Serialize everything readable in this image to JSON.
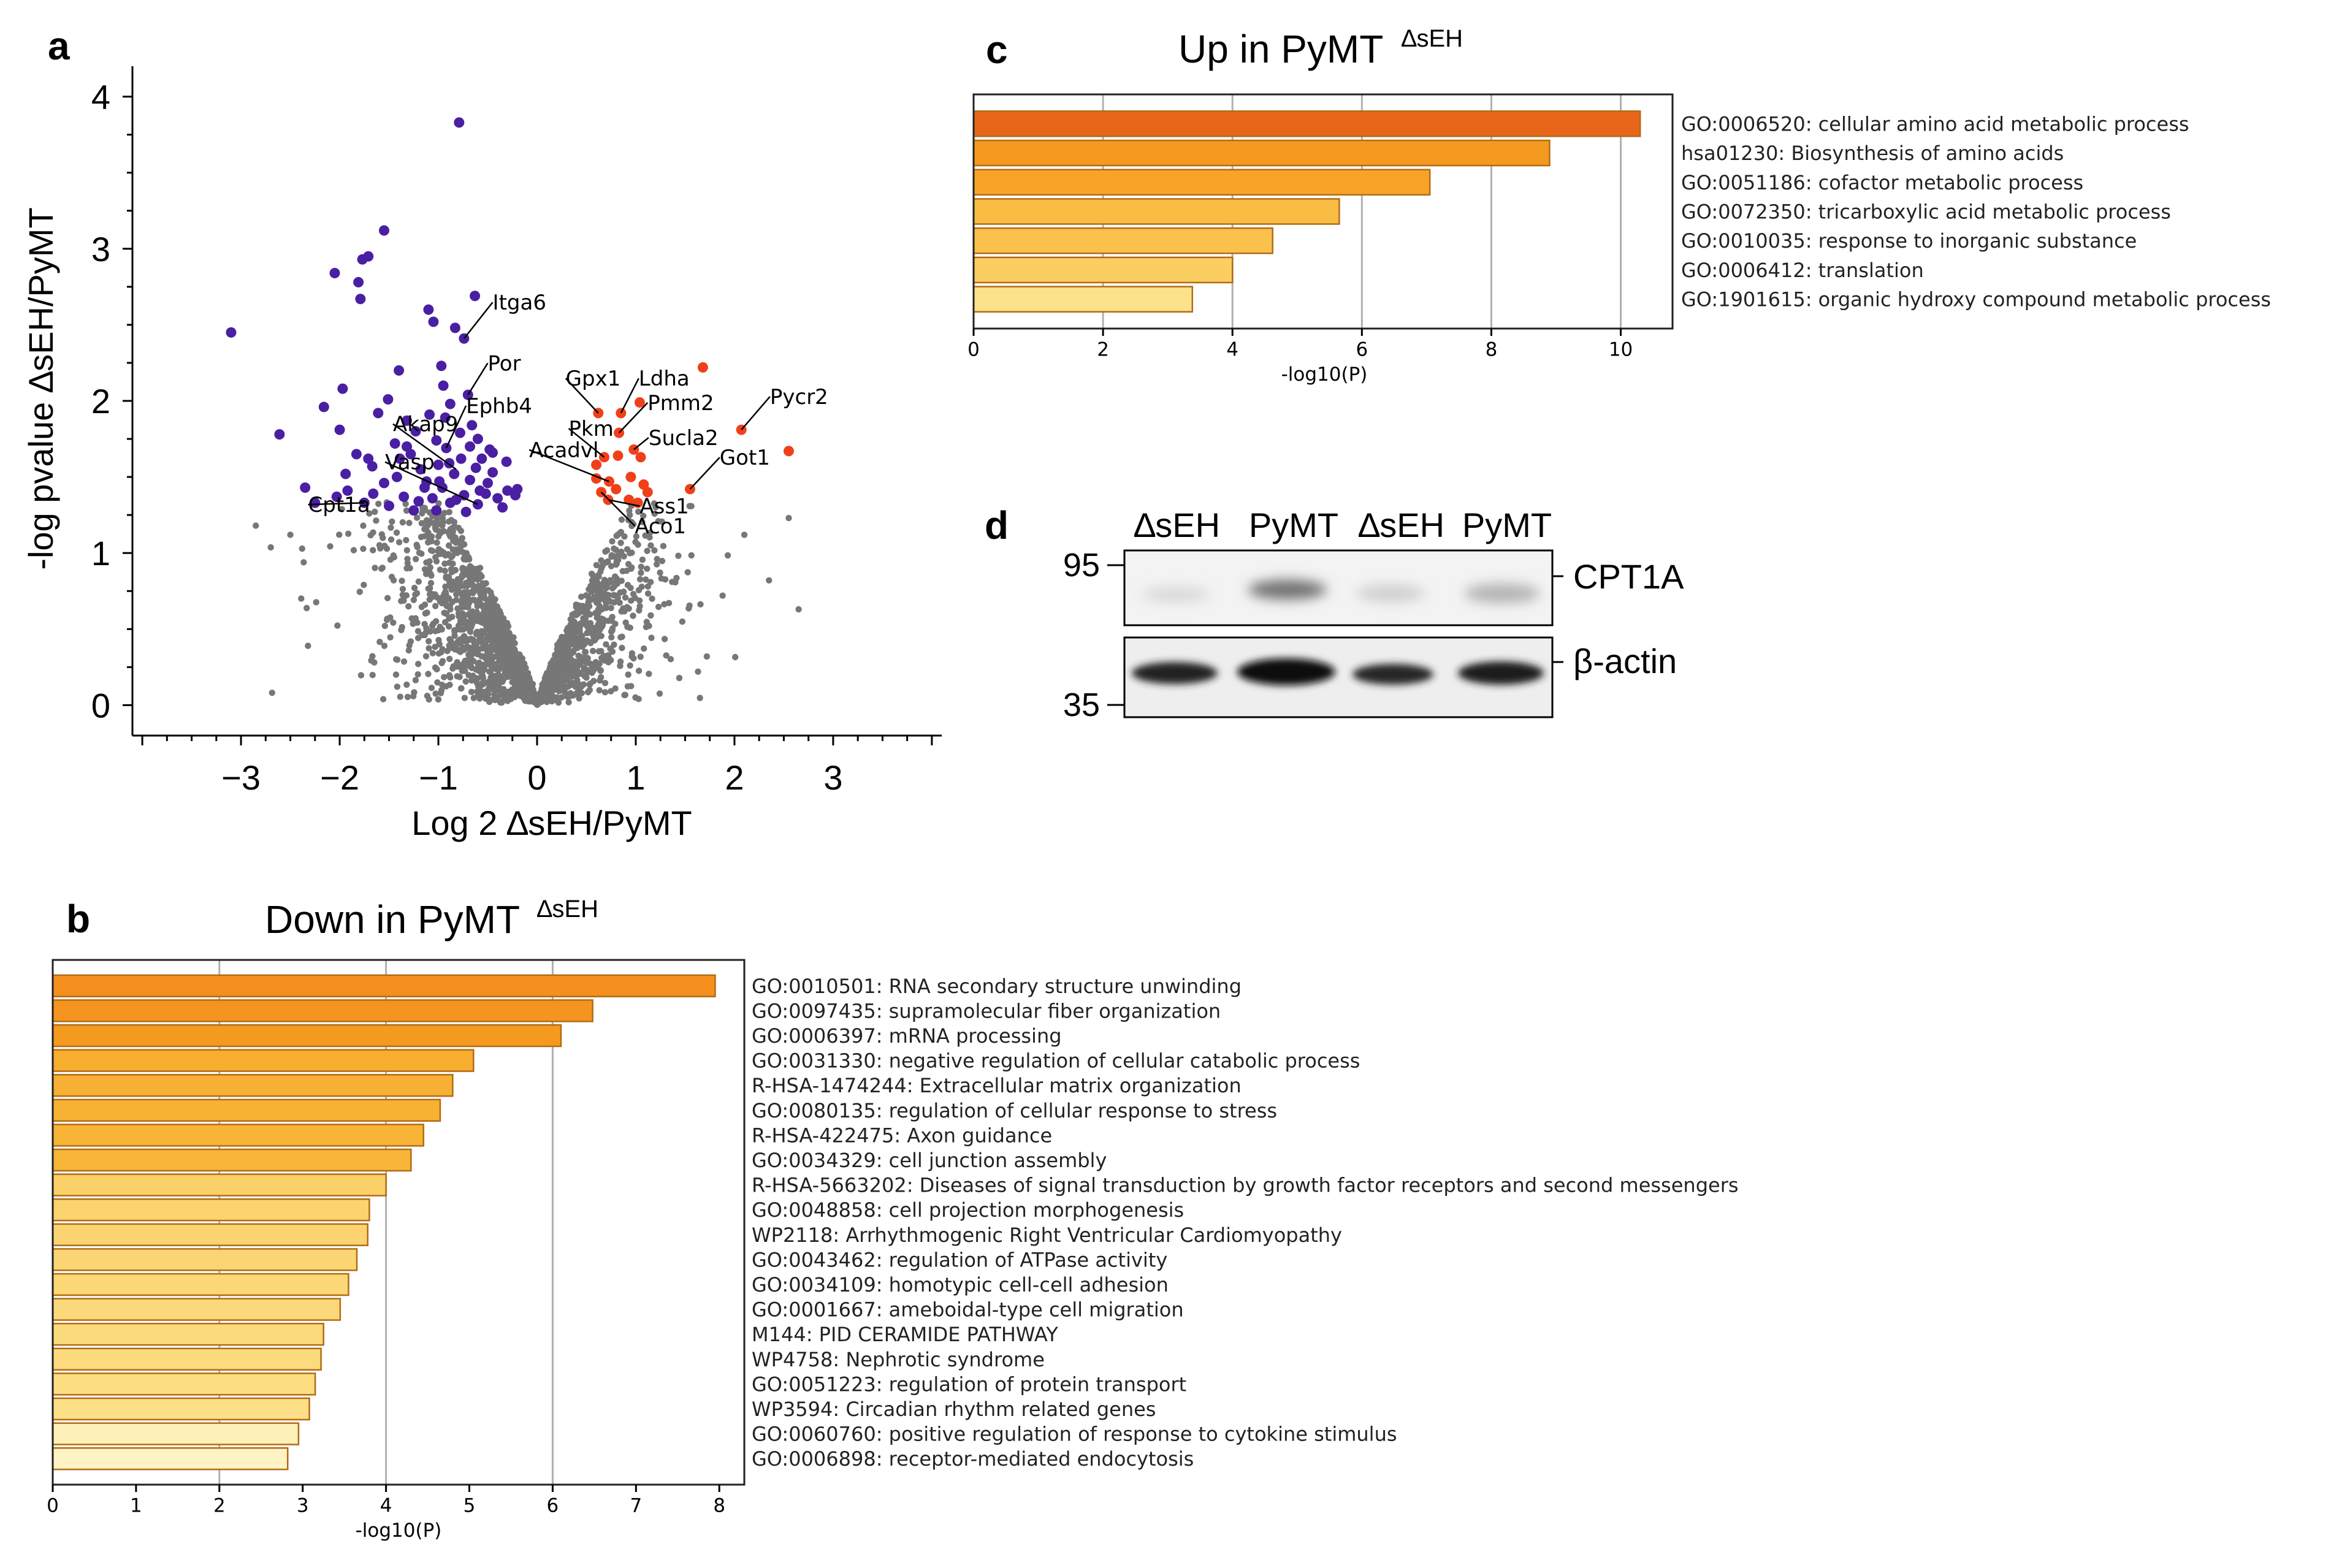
{
  "panels": {
    "a": "a",
    "b": "b",
    "c": "c",
    "d": "d"
  },
  "chart_data": [
    {
      "id": "volcano",
      "type": "scatter",
      "title": "",
      "xlabel": "Log 2 ∆sEH/PyMT",
      "ylabel": "-log pvalue ∆sEH/PyMT",
      "xlim": [
        -4.1,
        4.1
      ],
      "ylim": [
        -0.2,
        4.2
      ],
      "xticks": [
        -3,
        -2,
        -1,
        0,
        1,
        2,
        3
      ],
      "xtick_labels": [
        "−3",
        "−2",
        "−1",
        "0",
        "1",
        "2",
        "3"
      ],
      "yticks": [
        0,
        1,
        2,
        3,
        4
      ],
      "ytick_labels": [
        "0",
        "1",
        "2",
        "3",
        "4"
      ],
      "colors": {
        "down": "#4a1fa3",
        "up": "#f0401a",
        "ns": "#777777"
      },
      "down_points": [
        [
          -0.79,
          3.83
        ],
        [
          -1.55,
          3.12
        ],
        [
          -1.71,
          2.95
        ],
        [
          -1.77,
          2.93
        ],
        [
          -2.05,
          2.84
        ],
        [
          -1.81,
          2.78
        ],
        [
          -1.79,
          2.67
        ],
        [
          -0.63,
          2.69
        ],
        [
          -3.1,
          2.45
        ],
        [
          -1.1,
          2.6
        ],
        [
          -0.83,
          2.48
        ],
        [
          -1.05,
          2.52
        ],
        [
          -0.74,
          2.41
        ],
        [
          -1.4,
          2.2
        ],
        [
          -1.97,
          2.08
        ],
        [
          -0.97,
          2.23
        ],
        [
          -1.51,
          2.01
        ],
        [
          -0.95,
          2.1
        ],
        [
          -1.61,
          1.92
        ],
        [
          -2.16,
          1.96
        ],
        [
          -1.32,
          1.87
        ],
        [
          -1.09,
          1.91
        ],
        [
          -0.88,
          1.98
        ],
        [
          -0.7,
          2.04
        ],
        [
          -2.0,
          1.81
        ],
        [
          -1.23,
          1.8
        ],
        [
          -0.6,
          1.75
        ],
        [
          -1.44,
          1.72
        ],
        [
          -0.78,
          1.79
        ],
        [
          -0.92,
          1.69
        ],
        [
          -0.45,
          1.66
        ],
        [
          -0.31,
          1.6
        ],
        [
          -1.67,
          1.57
        ],
        [
          -1.83,
          1.65
        ],
        [
          -2.61,
          1.78
        ],
        [
          -0.56,
          1.62
        ],
        [
          -1.0,
          1.58
        ],
        [
          -1.18,
          1.55
        ],
        [
          -1.42,
          1.5
        ],
        [
          -0.84,
          1.52
        ],
        [
          -0.68,
          1.48
        ],
        [
          -1.94,
          1.52
        ],
        [
          -1.55,
          1.46
        ],
        [
          -1.12,
          1.47
        ],
        [
          -0.96,
          1.43
        ],
        [
          -0.3,
          1.41
        ],
        [
          -0.52,
          1.39
        ],
        [
          -0.74,
          1.38
        ],
        [
          -2.03,
          1.37
        ],
        [
          -1.92,
          1.41
        ],
        [
          -1.66,
          1.39
        ],
        [
          -1.35,
          1.37
        ],
        [
          -1.06,
          1.36
        ],
        [
          -0.88,
          1.33
        ],
        [
          -0.6,
          1.32
        ],
        [
          -0.4,
          1.36
        ],
        [
          -0.22,
          1.38
        ],
        [
          -2.35,
          1.43
        ],
        [
          -2.25,
          1.33
        ],
        [
          -1.75,
          1.33
        ],
        [
          -1.5,
          1.31
        ],
        [
          -1.2,
          1.34
        ],
        [
          -0.82,
          1.35
        ],
        [
          -0.5,
          1.46
        ],
        [
          -0.45,
          1.53
        ],
        [
          -0.62,
          1.56
        ],
        [
          -1.28,
          1.65
        ],
        [
          -1.71,
          1.62
        ],
        [
          -1.02,
          1.74
        ],
        [
          -0.66,
          1.84
        ],
        [
          -0.89,
          1.59
        ],
        [
          -1.14,
          1.43
        ],
        [
          -1.39,
          1.62
        ],
        [
          -1.02,
          1.28
        ],
        [
          -0.72,
          1.27
        ],
        [
          -0.35,
          1.3
        ],
        [
          -1.25,
          1.28
        ],
        [
          -0.58,
          1.41
        ],
        [
          -0.77,
          1.62
        ],
        [
          -0.93,
          1.89
        ],
        [
          -1.32,
          1.7
        ],
        [
          -0.48,
          1.68
        ],
        [
          -0.2,
          1.42
        ],
        [
          -0.68,
          1.7
        ],
        [
          -0.99,
          1.47
        ]
      ],
      "up_points": [
        [
          0.62,
          1.92
        ],
        [
          0.85,
          1.92
        ],
        [
          1.04,
          1.99
        ],
        [
          1.68,
          2.22
        ],
        [
          0.83,
          1.79
        ],
        [
          0.68,
          1.63
        ],
        [
          0.82,
          1.64
        ],
        [
          0.98,
          1.68
        ],
        [
          1.05,
          1.63
        ],
        [
          2.07,
          1.81
        ],
        [
          2.55,
          1.67
        ],
        [
          0.6,
          1.49
        ],
        [
          0.73,
          1.47
        ],
        [
          0.95,
          1.5
        ],
        [
          1.08,
          1.45
        ],
        [
          0.65,
          1.4
        ],
        [
          0.8,
          1.42
        ],
        [
          1.12,
          1.4
        ],
        [
          1.55,
          1.42
        ],
        [
          0.72,
          1.35
        ],
        [
          0.93,
          1.35
        ],
        [
          1.02,
          1.33
        ],
        [
          0.6,
          1.58
        ]
      ],
      "ns_points_generated": 2000,
      "annotations": [
        {
          "label": "Itga6",
          "point": [
            -0.74,
            2.41
          ],
          "text_at": [
            -0.45,
            2.6
          ]
        },
        {
          "label": "Por",
          "point": [
            -0.7,
            2.04
          ],
          "text_at": [
            -0.5,
            2.2
          ]
        },
        {
          "label": "Ephb4",
          "point": [
            -0.92,
            1.69
          ],
          "text_at": [
            -0.72,
            1.92
          ]
        },
        {
          "label": "Akap9",
          "point": [
            -0.82,
            1.55
          ],
          "text_at": [
            -1.46,
            1.8
          ]
        },
        {
          "label": "Vasp",
          "point": [
            -0.6,
            1.32
          ],
          "text_at": [
            -1.54,
            1.55
          ]
        },
        {
          "label": "Cpt1a",
          "point": [
            -1.75,
            1.33
          ],
          "text_at": [
            -2.32,
            1.27
          ]
        },
        {
          "label": "Gpx1",
          "point": [
            0.62,
            1.92
          ],
          "text_at": [
            0.29,
            2.1
          ]
        },
        {
          "label": "Ldha",
          "point": [
            0.85,
            1.92
          ],
          "text_at": [
            1.03,
            2.1
          ]
        },
        {
          "label": "Pmm2",
          "point": [
            0.83,
            1.79
          ],
          "text_at": [
            1.12,
            1.94
          ]
        },
        {
          "label": "Pkm",
          "point": [
            0.68,
            1.63
          ],
          "text_at": [
            0.32,
            1.77
          ]
        },
        {
          "label": "Sucla2",
          "point": [
            0.98,
            1.68
          ],
          "text_at": [
            1.13,
            1.71
          ]
        },
        {
          "label": "Acadvl",
          "point": [
            0.73,
            1.47
          ],
          "text_at": [
            -0.08,
            1.63
          ]
        },
        {
          "label": "Got1",
          "point": [
            1.55,
            1.42
          ],
          "text_at": [
            1.85,
            1.58
          ]
        },
        {
          "label": "Pycr2",
          "point": [
            2.07,
            1.81
          ],
          "text_at": [
            2.36,
            1.98
          ]
        },
        {
          "label": "Ass1",
          "point": [
            0.72,
            1.35
          ],
          "text_at": [
            1.04,
            1.26
          ]
        },
        {
          "label": "Aco1",
          "point": [
            0.65,
            1.4
          ],
          "text_at": [
            0.99,
            1.13
          ]
        }
      ]
    },
    {
      "id": "down_go",
      "type": "bar",
      "orientation": "horizontal",
      "title": "Down in PyMT",
      "title_superscript": "∆sEH",
      "xlabel": "-log10(P)",
      "xlim": [
        0,
        8.3
      ],
      "xticks": [
        0,
        1,
        2,
        3,
        4,
        5,
        6,
        7,
        8
      ],
      "xtick_labels": [
        "0",
        "1",
        "2",
        "3",
        "4",
        "5",
        "6",
        "7",
        "8"
      ],
      "gridlines": [
        2,
        4,
        6
      ],
      "categories": [
        "GO:0010501: RNA secondary structure unwinding",
        "GO:0097435: supramolecular fiber organization",
        "GO:0006397: mRNA processing",
        "GO:0031330: negative regulation of cellular catabolic process",
        "R-HSA-1474244: Extracellular matrix organization",
        "GO:0080135: regulation of cellular response to stress",
        "R-HSA-422475: Axon guidance",
        "GO:0034329: cell junction assembly",
        "R-HSA-5663202: Diseases of signal transduction by growth factor receptors and second messengers",
        "GO:0048858: cell projection morphogenesis",
        "WP2118: Arrhythmogenic Right Ventricular Cardiomyopathy",
        "GO:0043462: regulation of ATPase activity",
        "GO:0034109: homotypic cell-cell adhesion",
        "GO:0001667: ameboidal-type cell migration",
        "M144: PID CERAMIDE PATHWAY",
        "WP4758: Nephrotic syndrome",
        "GO:0051223: regulation of protein transport",
        "WP3594: Circadian rhythm related genes",
        "GO:0060760: positive regulation of response to cytokine stimulus",
        "GO:0006898: receptor-mediated endocytosis"
      ],
      "values": [
        7.95,
        6.48,
        6.1,
        5.05,
        4.8,
        4.65,
        4.45,
        4.3,
        4.0,
        3.8,
        3.78,
        3.65,
        3.55,
        3.45,
        3.25,
        3.22,
        3.15,
        3.08,
        2.95,
        2.82
      ],
      "colors": [
        "#f5901e",
        "#f5941f",
        "#f59a20",
        "#f7ad2e",
        "#f7b033",
        "#f7b234",
        "#f7b436",
        "#f7b638",
        "#fbd06a",
        "#fbd36f",
        "#fbd471",
        "#fbd574",
        "#fbd776",
        "#fbd879",
        "#fbda7c",
        "#fbdb7e",
        "#fcdd82",
        "#fcdf86",
        "#fdf0b8",
        "#fef3c4"
      ]
    },
    {
      "id": "up_go",
      "type": "bar",
      "orientation": "horizontal",
      "title": "Up in PyMT",
      "title_superscript": "∆sEH",
      "xlabel": "-log10(P)",
      "xlim": [
        0,
        10.8
      ],
      "xticks": [
        0,
        2,
        4,
        6,
        8,
        10
      ],
      "xtick_labels": [
        "0",
        "2",
        "4",
        "6",
        "8",
        "10"
      ],
      "gridlines": [
        2,
        4,
        6,
        8,
        10
      ],
      "categories": [
        "GO:0006520: cellular amino acid metabolic process",
        "hsa01230: Biosynthesis of amino acids",
        "GO:0051186: cofactor metabolic process",
        "GO:0072350: tricarboxylic acid metabolic process",
        "GO:0010035: response to inorganic substance",
        "GO:0006412: translation",
        "GO:1901615: organic hydroxy compound metabolic process"
      ],
      "values": [
        10.3,
        8.9,
        7.05,
        5.65,
        4.62,
        4.0,
        3.38
      ],
      "colors": [
        "#e8661a",
        "#f59a20",
        "#f7a427",
        "#f9bd44",
        "#fac24c",
        "#fbce62",
        "#fde28c"
      ]
    }
  ],
  "blot": {
    "lanes": [
      "∆sEH",
      "PyMT",
      "∆sEH",
      "PyMT"
    ],
    "markers": [
      "95",
      "35"
    ],
    "proteins": [
      "CPT1A",
      "β-actin"
    ]
  }
}
